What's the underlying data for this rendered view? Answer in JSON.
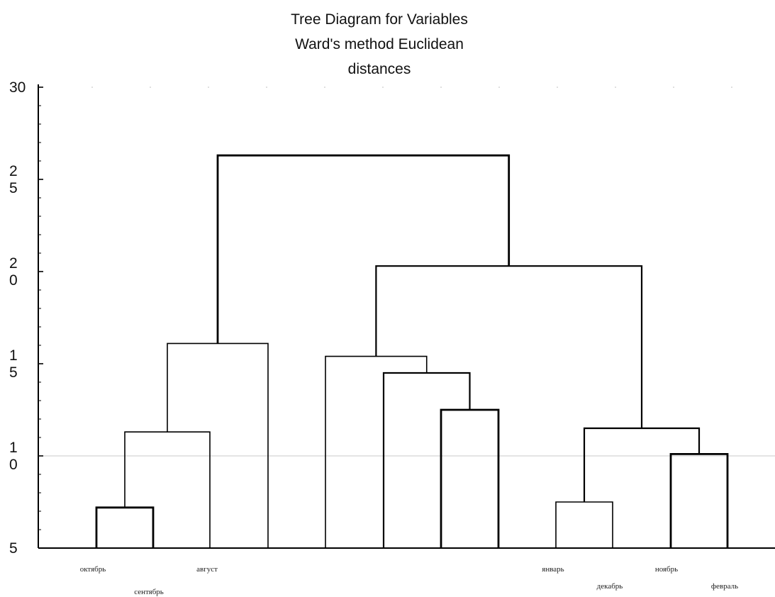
{
  "chart_data": {
    "type": "dendrogram",
    "title_lines": [
      "Tree Diagram for Variables",
      "Ward's method Euclidean",
      "distances"
    ],
    "ylim": [
      5,
      30
    ],
    "yticks": [
      {
        "value": 30,
        "lines": [
          "30"
        ]
      },
      {
        "value": 25,
        "lines": [
          "2",
          "5"
        ]
      },
      {
        "value": 20,
        "lines": [
          "2",
          "0"
        ]
      },
      {
        "value": 15,
        "lines": [
          "1",
          "5"
        ]
      },
      {
        "value": 10,
        "lines": [
          "1",
          "0"
        ]
      },
      {
        "value": 5,
        "lines": [
          "5"
        ]
      }
    ],
    "reference_line": 10,
    "leaves": [
      {
        "label": "октябрь"
      },
      {
        "label": "сентябрь"
      },
      {
        "label": "август"
      },
      {
        "label": "август"
      },
      {
        "label": ""
      },
      {
        "label": ""
      },
      {
        "label": ""
      },
      {
        "label": ""
      },
      {
        "label": "январь"
      },
      {
        "label": "декабрь"
      },
      {
        "label": "ноябрь"
      },
      {
        "label": "февраль"
      }
    ],
    "links": [
      {
        "left": 0,
        "right": 1,
        "height": 7.2
      },
      {
        "left": 12,
        "right": 2,
        "height": 11.3
      },
      {
        "left": 13,
        "right": 3,
        "height": 16.1
      },
      {
        "left": 6,
        "right": 7,
        "height": 12.5
      },
      {
        "left": 5,
        "right": 15,
        "height": 14.5
      },
      {
        "left": 4,
        "right": 16,
        "height": 15.4
      },
      {
        "left": 8,
        "right": 9,
        "height": 7.5
      },
      {
        "left": 10,
        "right": 11,
        "height": 10.1
      },
      {
        "left": 18,
        "right": 19,
        "height": 11.5
      },
      {
        "left": 17,
        "right": 20,
        "height": 20.3
      },
      {
        "left": 14,
        "right": 21,
        "height": 26.3
      }
    ],
    "xlabel": "",
    "ylabel": ""
  }
}
